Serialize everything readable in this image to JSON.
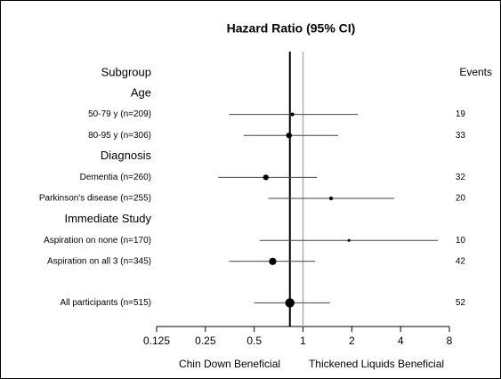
{
  "chart_data": {
    "type": "forest",
    "title": "Hazard Ratio (95% CI)",
    "label_header": "Subgroup",
    "events_header": "Events",
    "xlabel_left": "Chin Down Beneficial",
    "xlabel_right": "Thickened Liquids Beneficial",
    "xscale": "log",
    "xlim": [
      0.125,
      8
    ],
    "xticks": [
      0.125,
      0.25,
      0.5,
      1,
      2,
      4,
      8
    ],
    "reference": 1,
    "color": "#000000",
    "reference_color": "#b0b0b0",
    "rows": [
      {
        "label": "Age"
      },
      {
        "label": "50-79 y (n=209)",
        "estimate": 0.86,
        "lower": 0.35,
        "upper": 2.18,
        "events": 19
      },
      {
        "label": "80-95 y (n=306)",
        "estimate": 0.82,
        "lower": 0.43,
        "upper": 1.65,
        "events": 33
      },
      {
        "label": "Diagnosis"
      },
      {
        "label": "Dementia (n=260)",
        "estimate": 0.59,
        "lower": 0.3,
        "upper": 1.22,
        "events": 32
      },
      {
        "label": "Parkinson's disease (n=255)",
        "estimate": 1.49,
        "lower": 0.61,
        "upper": 3.66,
        "events": 20
      },
      {
        "label": "Immediate Study"
      },
      {
        "label": "Aspiration on none (n=170)",
        "estimate": 1.92,
        "lower": 0.54,
        "upper": 6.79,
        "events": 10
      },
      {
        "label": "Aspiration on all 3 (n=345)",
        "estimate": 0.65,
        "lower": 0.35,
        "upper": 1.19,
        "events": 42
      },
      {
        "label": "All participants (n=515)",
        "estimate": 0.83,
        "lower": 0.5,
        "upper": 1.47,
        "events": 52
      }
    ]
  }
}
